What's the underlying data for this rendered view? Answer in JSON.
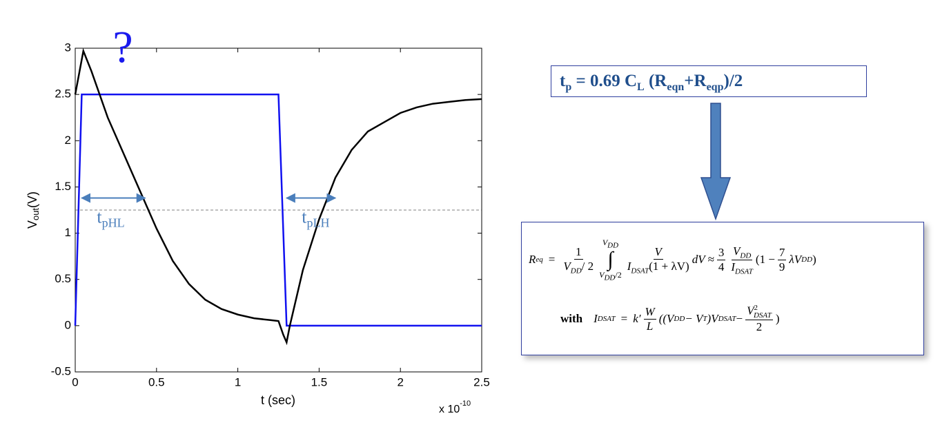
{
  "chart_data": {
    "type": "line",
    "xlabel": "t (sec)",
    "ylabel": {
      "main": "V",
      "sub": "out",
      "unit": "(V)"
    },
    "x_multiplier": {
      "base": "x 10",
      "exponent": "-10"
    },
    "xlim": [
      0,
      2.5
    ],
    "xticks": [
      0,
      0.5,
      1,
      1.5,
      2,
      2.5
    ],
    "ylim": [
      -0.5,
      3
    ],
    "yticks": [
      -0.5,
      0,
      0.5,
      1,
      1.5,
      2,
      2.5,
      3
    ],
    "series": [
      {
        "color": "#1010f0",
        "x": [
          0,
          0.04,
          1.25,
          1.3,
          2.5
        ],
        "values": [
          0,
          2.5,
          2.5,
          0,
          0
        ]
      },
      {
        "color": "#000000",
        "x": [
          0,
          0.05,
          0.1,
          0.15,
          0.2,
          0.3,
          0.4,
          0.5,
          0.6,
          0.7,
          0.8,
          0.9,
          1.0,
          1.1,
          1.2,
          1.25,
          1.28,
          1.3,
          1.32,
          1.4,
          1.5,
          1.6,
          1.7,
          1.8,
          1.9,
          2.0,
          2.1,
          2.2,
          2.3,
          2.4,
          2.5
        ],
        "values": [
          2.5,
          2.97,
          2.75,
          2.5,
          2.25,
          1.85,
          1.45,
          1.05,
          0.7,
          0.45,
          0.28,
          0.18,
          0.12,
          0.08,
          0.06,
          0.05,
          -0.1,
          -0.18,
          0.0,
          0.6,
          1.15,
          1.6,
          1.9,
          2.1,
          2.2,
          2.3,
          2.36,
          2.4,
          2.42,
          2.44,
          2.45
        ]
      }
    ],
    "threshold": 1.25,
    "question": "?",
    "annotations": [
      {
        "text": "t",
        "sub": "pHL",
        "x": [
          0.04,
          0.43
        ],
        "y": 1.38
      },
      {
        "text": "t",
        "sub": "pLH",
        "x": [
          1.3,
          1.6
        ],
        "y": 1.38
      }
    ]
  },
  "formula": [
    "t",
    "p",
    " = 0.69 C",
    "L",
    " (R",
    "eqn",
    "+R",
    "eqp",
    ")/2"
  ],
  "req_equation": [
    "R",
    "eq",
    "=",
    "1",
    "V",
    "DD",
    "/ 2",
    "∫",
    "V",
    "DD",
    "V",
    "DD",
    "/2",
    "V",
    "I",
    "DSAT",
    "(1 + λV)",
    "dV ≈",
    "3",
    "4",
    "V",
    "DD",
    "I",
    "DSAT",
    "(1 − ",
    "7",
    "9",
    "λV",
    "DD",
    ")"
  ],
  "isat_equation": [
    "with",
    "I",
    "DSAT",
    "=",
    "k′",
    "W",
    "L",
    "((V",
    "DD",
    " − V",
    "T",
    ")V",
    "DSAT",
    " − ",
    "V",
    "DSAT",
    "2",
    "2",
    ")"
  ]
}
